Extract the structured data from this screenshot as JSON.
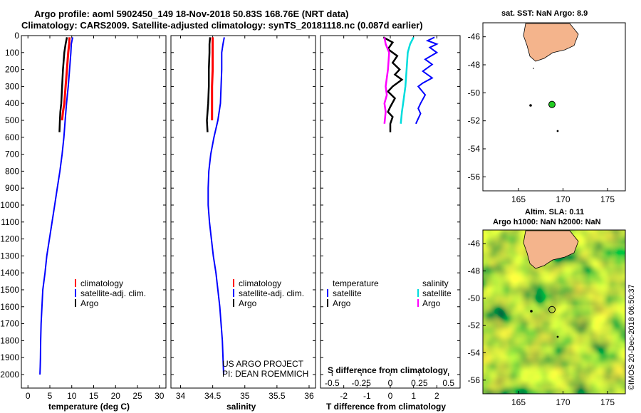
{
  "header": {
    "line1": "Argo profile: aoml 5902450_149 18-Nov-2018 50.83S 168.76E (NRT data)",
    "line2": "Climatology: CARS2009. Satellite-adjusted climatology: synTS_20181118.nc (0.087d earlier)"
  },
  "colors": {
    "climatology": "#ff0000",
    "satellite": "#0000ff",
    "argo": "#000000",
    "sat_sal": "#00dddd",
    "argo_sal": "#ff00ff",
    "land": "#f4b48c",
    "float": "#22cc22"
  },
  "depth_axis": {
    "ticks": [
      "0",
      "100",
      "200",
      "300",
      "400",
      "500",
      "600",
      "700",
      "800",
      "900",
      "1000",
      "1100",
      "1200",
      "1300",
      "1400",
      "1500",
      "1600",
      "1700",
      "1800",
      "1900",
      "2000"
    ],
    "range": [
      0,
      2080
    ]
  },
  "chart_data": [
    {
      "type": "line",
      "id": "temperature",
      "xlabel": "temperature (deg C)",
      "xticks": [
        "0",
        "5",
        "10",
        "15",
        "20",
        "25",
        "30"
      ],
      "xlim": [
        -1.5,
        31.5
      ],
      "legend": [
        "climatology",
        "satellite-adj. clim.",
        "Argo"
      ],
      "series": [
        {
          "name": "climatology",
          "x": [
            9.5,
            9.4,
            9.2,
            8.9,
            8.6,
            8.3,
            8.0,
            7.8
          ],
          "depth": [
            10,
            50,
            100,
            200,
            300,
            400,
            450,
            500
          ]
        },
        {
          "name": "satellite-adj. clim.",
          "x": [
            10.2,
            9.9,
            9.8,
            9.5,
            9.2,
            8.8,
            8.5,
            8.2,
            7.8,
            7.3,
            6.7,
            6.1,
            5.5,
            4.9,
            4.3,
            3.9,
            3.4,
            3.2,
            3.0,
            2.9,
            2.85,
            2.8,
            2.75
          ],
          "depth": [
            10,
            50,
            100,
            200,
            300,
            400,
            500,
            600,
            700,
            800,
            900,
            1000,
            1100,
            1200,
            1300,
            1400,
            1500,
            1600,
            1700,
            1800,
            1900,
            1950,
            2000
          ]
        },
        {
          "name": "Argo",
          "x": [
            8.9,
            8.6,
            8.3,
            8.0,
            7.8,
            7.6,
            7.4,
            7.3,
            7.2
          ],
          "depth": [
            10,
            50,
            100,
            200,
            300,
            400,
            450,
            500,
            570
          ]
        }
      ]
    },
    {
      "type": "line",
      "id": "salinity",
      "xlabel": "salinity",
      "xticks": [
        "34",
        "34.5",
        "35",
        "35.5",
        "36"
      ],
      "xlim": [
        33.85,
        36.1
      ],
      "legend": [
        "climatology",
        "satellite-adj. clim.",
        "Argo"
      ],
      "annotation": [
        "US ARGO PROJECT",
        "PI: DEAN ROEMMICH"
      ],
      "series": [
        {
          "name": "climatology",
          "x": [
            34.5,
            34.5,
            34.5,
            34.5,
            34.49,
            34.49,
            34.49,
            34.49
          ],
          "depth": [
            10,
            50,
            100,
            200,
            300,
            400,
            450,
            500
          ]
        },
        {
          "name": "satellite-adj. clim.",
          "x": [
            34.68,
            34.66,
            34.64,
            34.64,
            34.63,
            34.62,
            34.58,
            34.52,
            34.47,
            34.44,
            34.43,
            34.43,
            34.45,
            34.48,
            34.51,
            34.55,
            34.58,
            34.61,
            34.63,
            34.65,
            34.66,
            34.67
          ],
          "depth": [
            10,
            50,
            100,
            200,
            300,
            400,
            500,
            600,
            700,
            800,
            900,
            1000,
            1100,
            1200,
            1300,
            1400,
            1500,
            1600,
            1700,
            1800,
            1900,
            2000
          ]
        },
        {
          "name": "Argo",
          "x": [
            34.46,
            34.45,
            34.45,
            34.44,
            34.44,
            34.43,
            34.42,
            34.41,
            34.42
          ],
          "depth": [
            10,
            50,
            100,
            200,
            300,
            400,
            450,
            500,
            570
          ]
        }
      ]
    },
    {
      "type": "line",
      "id": "difference",
      "xlabel": "T difference from climatology",
      "xticks": [
        "-2",
        "-1",
        "0",
        "1",
        "2"
      ],
      "xlim": [
        -3,
        3
      ],
      "top_label": "S difference from climatology",
      "top_ticks": [
        "-0.5",
        "-0.25",
        "0",
        "0.25",
        "0.5"
      ],
      "top_range": [
        -0.6,
        0.6
      ],
      "legend_temp_header": "temperature",
      "legend_sal_header": "salinity",
      "legend_temp": [
        "satellite",
        "Argo"
      ],
      "legend_sal": [
        "satellite",
        "Argo"
      ],
      "series": [
        {
          "name": "T satellite",
          "x": [
            1.9,
            1.6,
            2.0,
            1.7,
            2.0,
            1.5,
            1.8,
            1.4,
            1.8,
            1.4,
            1.2,
            1.5,
            1.3,
            1.2,
            1.3,
            1.2,
            1.1
          ],
          "depth": [
            10,
            30,
            50,
            70,
            100,
            140,
            170,
            210,
            250,
            280,
            300,
            350,
            400,
            430,
            460,
            490,
            520
          ]
        },
        {
          "name": "T Argo",
          "x": [
            -0.3,
            0.1,
            -0.1,
            0.3,
            0.1,
            0.4,
            0.2,
            0.5,
            0.1,
            -0.1,
            0.2,
            0.0,
            -0.1,
            0.1,
            0.0,
            0.0
          ],
          "depth": [
            10,
            40,
            80,
            120,
            160,
            200,
            230,
            260,
            300,
            330,
            370,
            420,
            450,
            480,
            520,
            570
          ]
        },
        {
          "name": "S satellite",
          "x": [
            0.2,
            0.17,
            0.15,
            0.14,
            0.13,
            0.12,
            0.11,
            0.1,
            0.09
          ],
          "depth": [
            10,
            50,
            100,
            200,
            300,
            350,
            400,
            450,
            520
          ]
        },
        {
          "name": "S Argo",
          "x": [
            -0.05,
            -0.04,
            -0.01,
            -0.02,
            -0.04,
            -0.03,
            -0.05,
            -0.04,
            -0.05
          ],
          "depth": [
            10,
            50,
            100,
            200,
            300,
            350,
            400,
            450,
            520
          ]
        }
      ]
    }
  ],
  "map_top": {
    "title": "sat. SST: NaN Argo: 8.9",
    "lat_ticks": [
      "-46",
      "-48",
      "-50",
      "-52",
      "-54",
      "-56"
    ],
    "lon_ticks": [
      "165",
      "170",
      "175"
    ],
    "float_lon": 168.76,
    "float_lat": -50.83
  },
  "map_bottom": {
    "title1": "Altim. SLA: 0.11",
    "title2": "Argo h1000: NaN h2000: NaN",
    "lat_ticks": [
      "-46",
      "-48",
      "-50",
      "-52",
      "-54",
      "-56"
    ],
    "lon_ticks": [
      "165",
      "170",
      "175"
    ],
    "float_lon": 168.76,
    "float_lat": -50.83
  },
  "footer": {
    "stamp": "©IMOS 20-Dec-2018 06:50:37"
  }
}
